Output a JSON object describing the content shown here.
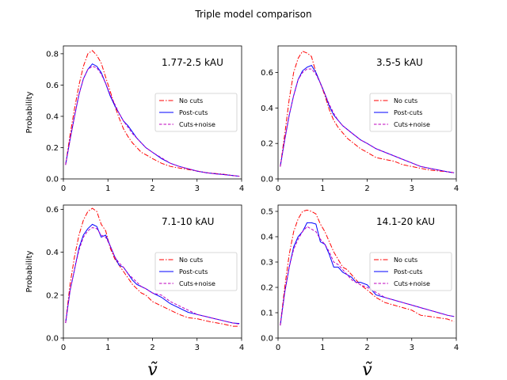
{
  "figure": {
    "title": "Triple model comparison"
  },
  "legend": {
    "entries": [
      {
        "name": "No cuts",
        "color": "#ff0000",
        "dash": "dashdot"
      },
      {
        "name": "Post-cuts",
        "color": "#0000ff",
        "dash": "solid"
      },
      {
        "name": "Cuts+noise",
        "color": "#bf00bf",
        "dash": "dashed"
      }
    ]
  },
  "chart_data": [
    {
      "type": "line",
      "annotation": "1.77-2.5 kAU",
      "ylabel": "Probability",
      "xlabel": "",
      "xlim": [
        0,
        4
      ],
      "ylim": [
        0,
        0.85
      ],
      "xticks": [
        "0",
        "1",
        "2",
        "3",
        "4"
      ],
      "yticks": [
        0,
        0.2,
        0.4,
        0.6,
        0.8
      ],
      "ytick_labels": [
        "0.0",
        "0.2",
        "0.4",
        "0.6",
        "0.8"
      ],
      "x": [
        0.05,
        0.15,
        0.25,
        0.35,
        0.45,
        0.55,
        0.65,
        0.75,
        0.85,
        0.95,
        1.05,
        1.15,
        1.25,
        1.35,
        1.45,
        1.55,
        1.65,
        1.75,
        1.85,
        2.0,
        2.2,
        2.4,
        2.6,
        2.8,
        3.0,
        3.2,
        3.4,
        3.6,
        3.8,
        3.95
      ],
      "series": [
        {
          "name": "No cuts",
          "values": [
            0.09,
            0.28,
            0.45,
            0.6,
            0.72,
            0.8,
            0.82,
            0.79,
            0.74,
            0.65,
            0.56,
            0.47,
            0.39,
            0.32,
            0.27,
            0.23,
            0.2,
            0.17,
            0.155,
            0.13,
            0.1,
            0.08,
            0.07,
            0.06,
            0.05,
            0.04,
            0.035,
            0.03,
            0.022,
            0.017
          ]
        },
        {
          "name": "Post-cuts",
          "values": [
            0.09,
            0.25,
            0.4,
            0.54,
            0.64,
            0.7,
            0.735,
            0.72,
            0.68,
            0.61,
            0.53,
            0.47,
            0.42,
            0.37,
            0.34,
            0.3,
            0.26,
            0.23,
            0.2,
            0.17,
            0.13,
            0.1,
            0.08,
            0.065,
            0.05,
            0.04,
            0.033,
            0.028,
            0.022,
            0.017
          ]
        },
        {
          "name": "Cuts+noise",
          "values": [
            0.09,
            0.25,
            0.4,
            0.54,
            0.64,
            0.7,
            0.72,
            0.71,
            0.67,
            0.61,
            0.54,
            0.48,
            0.42,
            0.37,
            0.33,
            0.29,
            0.26,
            0.23,
            0.2,
            0.17,
            0.135,
            0.1,
            0.08,
            0.065,
            0.05,
            0.04,
            0.033,
            0.028,
            0.022,
            0.017
          ]
        }
      ]
    },
    {
      "type": "line",
      "annotation": "3.5-5 kAU",
      "ylabel": "",
      "xlabel": "",
      "xlim": [
        0,
        4
      ],
      "ylim": [
        0,
        0.75
      ],
      "xticks": [
        "0",
        "1",
        "2",
        "3",
        "4"
      ],
      "yticks": [
        0,
        0.2,
        0.4,
        0.6
      ],
      "ytick_labels": [
        "0.0",
        "0.2",
        "0.4",
        "0.6"
      ],
      "x": [
        0.05,
        0.15,
        0.25,
        0.35,
        0.45,
        0.55,
        0.65,
        0.75,
        0.85,
        0.95,
        1.05,
        1.15,
        1.25,
        1.35,
        1.45,
        1.55,
        1.65,
        1.75,
        1.85,
        2.0,
        2.2,
        2.4,
        2.6,
        2.8,
        3.0,
        3.2,
        3.4,
        3.6,
        3.8,
        3.95
      ],
      "series": [
        {
          "name": "No cuts",
          "values": [
            0.07,
            0.25,
            0.45,
            0.6,
            0.68,
            0.72,
            0.71,
            0.69,
            0.6,
            0.54,
            0.47,
            0.39,
            0.33,
            0.29,
            0.26,
            0.23,
            0.21,
            0.19,
            0.17,
            0.15,
            0.12,
            0.11,
            0.1,
            0.08,
            0.07,
            0.06,
            0.05,
            0.045,
            0.04,
            0.035
          ]
        },
        {
          "name": "Post-cuts",
          "values": [
            0.07,
            0.22,
            0.36,
            0.47,
            0.56,
            0.61,
            0.63,
            0.64,
            0.6,
            0.54,
            0.48,
            0.41,
            0.36,
            0.33,
            0.3,
            0.28,
            0.26,
            0.24,
            0.22,
            0.2,
            0.17,
            0.15,
            0.13,
            0.11,
            0.09,
            0.07,
            0.06,
            0.05,
            0.04,
            0.035
          ]
        },
        {
          "name": "Cuts+noise",
          "values": [
            0.07,
            0.22,
            0.36,
            0.47,
            0.56,
            0.6,
            0.62,
            0.62,
            0.59,
            0.54,
            0.48,
            0.42,
            0.37,
            0.33,
            0.3,
            0.28,
            0.26,
            0.24,
            0.22,
            0.2,
            0.17,
            0.15,
            0.13,
            0.11,
            0.09,
            0.07,
            0.06,
            0.05,
            0.04,
            0.035
          ]
        }
      ]
    },
    {
      "type": "line",
      "annotation": "7.1-10 kAU",
      "ylabel": "Probability",
      "xlabel": "ṽ",
      "xlim": [
        0,
        4
      ],
      "ylim": [
        0,
        0.62
      ],
      "xticks": [
        "0",
        "1",
        "2",
        "3",
        "4"
      ],
      "yticks": [
        0,
        0.2,
        0.4,
        0.6
      ],
      "ytick_labels": [
        "0.0",
        "0.2",
        "0.4",
        "0.6"
      ],
      "x": [
        0.05,
        0.15,
        0.25,
        0.35,
        0.45,
        0.55,
        0.65,
        0.75,
        0.85,
        0.95,
        1.05,
        1.15,
        1.25,
        1.35,
        1.45,
        1.55,
        1.65,
        1.75,
        1.85,
        2.0,
        2.2,
        2.4,
        2.6,
        2.8,
        3.0,
        3.2,
        3.4,
        3.6,
        3.8,
        3.95
      ],
      "series": [
        {
          "name": "No cuts",
          "values": [
            0.07,
            0.25,
            0.38,
            0.48,
            0.55,
            0.59,
            0.605,
            0.59,
            0.53,
            0.5,
            0.42,
            0.37,
            0.34,
            0.31,
            0.28,
            0.25,
            0.23,
            0.21,
            0.2,
            0.17,
            0.15,
            0.13,
            0.11,
            0.095,
            0.09,
            0.08,
            0.072,
            0.065,
            0.055,
            0.055
          ]
        },
        {
          "name": "Post-cuts",
          "values": [
            0.07,
            0.22,
            0.32,
            0.42,
            0.48,
            0.51,
            0.53,
            0.52,
            0.47,
            0.48,
            0.43,
            0.38,
            0.34,
            0.33,
            0.3,
            0.27,
            0.25,
            0.24,
            0.23,
            0.21,
            0.19,
            0.16,
            0.14,
            0.12,
            0.11,
            0.1,
            0.09,
            0.08,
            0.07,
            0.068
          ]
        },
        {
          "name": "Cuts+noise",
          "values": [
            0.07,
            0.22,
            0.32,
            0.41,
            0.47,
            0.5,
            0.515,
            0.51,
            0.48,
            0.47,
            0.43,
            0.38,
            0.35,
            0.33,
            0.3,
            0.28,
            0.26,
            0.24,
            0.23,
            0.21,
            0.2,
            0.17,
            0.15,
            0.13,
            0.11,
            0.1,
            0.09,
            0.08,
            0.07,
            0.065
          ]
        }
      ]
    },
    {
      "type": "line",
      "annotation": "14.1-20 kAU",
      "ylabel": "",
      "xlabel": "ṽ",
      "xlim": [
        0,
        4
      ],
      "ylim": [
        0,
        0.525
      ],
      "xticks": [
        "0",
        "1",
        "2",
        "3",
        "4"
      ],
      "yticks": [
        0,
        0.1,
        0.2,
        0.3,
        0.4,
        0.5
      ],
      "ytick_labels": [
        "0.0",
        "0.1",
        "0.2",
        "0.3",
        "0.4",
        "0.5"
      ],
      "x": [
        0.05,
        0.15,
        0.25,
        0.35,
        0.45,
        0.55,
        0.65,
        0.75,
        0.85,
        0.95,
        1.05,
        1.15,
        1.25,
        1.35,
        1.45,
        1.55,
        1.65,
        1.75,
        1.85,
        2.0,
        2.2,
        2.4,
        2.6,
        2.8,
        3.0,
        3.2,
        3.4,
        3.6,
        3.8,
        3.95
      ],
      "series": [
        {
          "name": "No cuts",
          "values": [
            0.05,
            0.2,
            0.33,
            0.42,
            0.47,
            0.5,
            0.505,
            0.5,
            0.49,
            0.45,
            0.42,
            0.38,
            0.34,
            0.31,
            0.28,
            0.27,
            0.25,
            0.23,
            0.21,
            0.19,
            0.16,
            0.14,
            0.13,
            0.12,
            0.11,
            0.09,
            0.085,
            0.08,
            0.075,
            0.065
          ]
        },
        {
          "name": "Post-cuts",
          "values": [
            0.05,
            0.18,
            0.28,
            0.36,
            0.4,
            0.42,
            0.455,
            0.455,
            0.45,
            0.38,
            0.37,
            0.33,
            0.28,
            0.28,
            0.26,
            0.25,
            0.24,
            0.22,
            0.22,
            0.21,
            0.17,
            0.16,
            0.15,
            0.14,
            0.13,
            0.12,
            0.11,
            0.1,
            0.09,
            0.085
          ]
        },
        {
          "name": "Cuts+noise",
          "values": [
            0.05,
            0.18,
            0.28,
            0.35,
            0.39,
            0.42,
            0.44,
            0.43,
            0.42,
            0.39,
            0.37,
            0.34,
            0.3,
            0.29,
            0.27,
            0.25,
            0.23,
            0.22,
            0.21,
            0.2,
            0.18,
            0.16,
            0.15,
            0.14,
            0.13,
            0.12,
            0.11,
            0.1,
            0.09,
            0.085
          ]
        }
      ]
    }
  ]
}
